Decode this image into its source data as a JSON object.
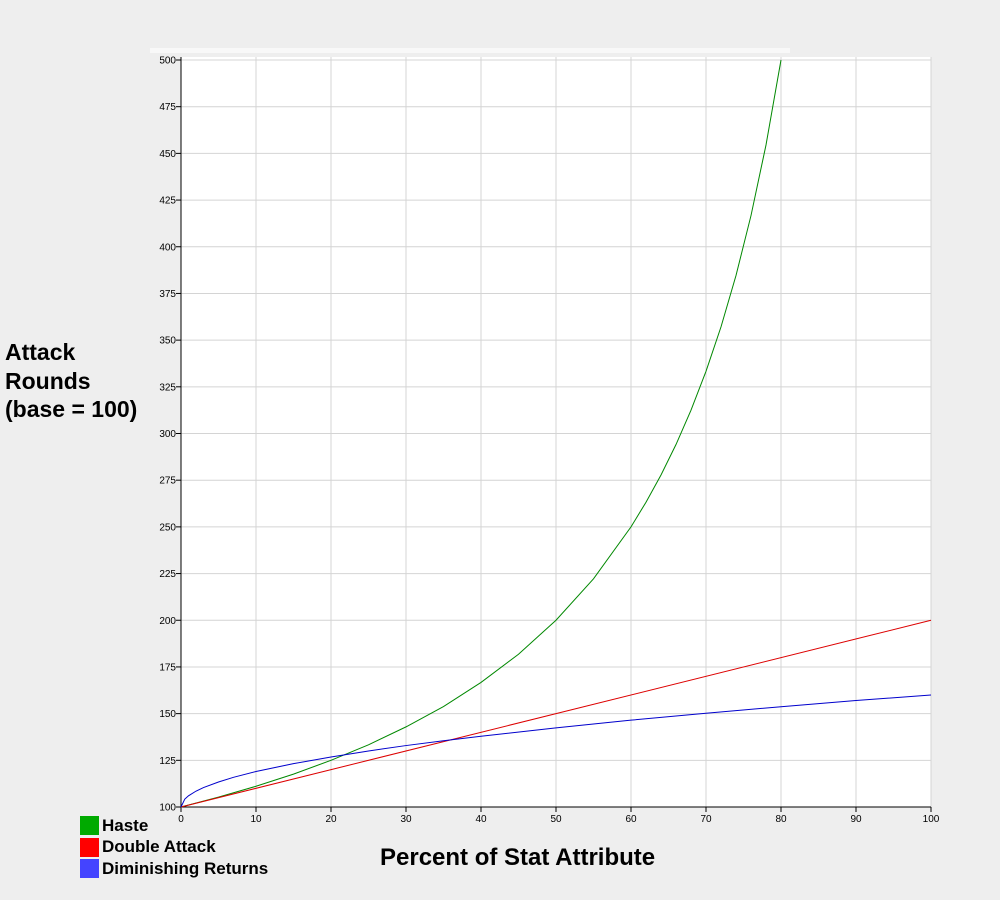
{
  "chart_data": {
    "type": "line",
    "title": "",
    "xlabel": "Percent of Stat Attribute",
    "ylabel_lines": [
      "Attack",
      "Rounds",
      "(base = 100)"
    ],
    "xlim": [
      0,
      100
    ],
    "ylim": [
      100,
      500
    ],
    "x_ticks": [
      "0",
      "10",
      "20",
      "30",
      "40",
      "50",
      "60",
      "70",
      "80",
      "90",
      "100"
    ],
    "y_ticks": [
      "100",
      "125",
      "150",
      "175",
      "200",
      "225",
      "250",
      "275",
      "300",
      "325",
      "350",
      "375",
      "400",
      "425",
      "450",
      "475",
      "500"
    ],
    "grid": true,
    "legend_position": "bottom-left",
    "series": [
      {
        "name": "Haste",
        "color": "#008800",
        "x": [
          0,
          5,
          10,
          15,
          20,
          25,
          30,
          35,
          40,
          45,
          50,
          55,
          60,
          62,
          64,
          66,
          68,
          70,
          72,
          74,
          76,
          78,
          80
        ],
        "y": [
          100,
          105.3,
          111.1,
          117.6,
          125,
          133.3,
          142.9,
          153.8,
          166.7,
          181.8,
          200,
          222.2,
          250,
          263.2,
          277.8,
          294.1,
          312.5,
          333.3,
          357.1,
          384.6,
          416.7,
          454.5,
          500
        ]
      },
      {
        "name": "Double Attack",
        "color": "#dd0000",
        "x": [
          0,
          100
        ],
        "y": [
          100,
          200
        ]
      },
      {
        "name": "Diminishing Returns",
        "color": "#0000cc",
        "x": [
          0,
          0.5,
          1,
          2,
          3,
          5,
          7,
          10,
          15,
          20,
          25,
          30,
          35,
          40,
          50,
          60,
          70,
          80,
          90,
          100
        ],
        "y": [
          100,
          104.2,
          106,
          108.5,
          110.4,
          113.4,
          115.9,
          119,
          123.2,
          126.8,
          130,
          132.9,
          135.5,
          137.9,
          142.4,
          146.5,
          150.2,
          153.7,
          157.0,
          160
        ]
      }
    ]
  },
  "legend": [
    {
      "label": "Haste",
      "color": "#00aa00"
    },
    {
      "label": "Double Attack",
      "color": "#ff0000"
    },
    {
      "label": "Diminishing Returns",
      "color": "#4444ff"
    }
  ]
}
